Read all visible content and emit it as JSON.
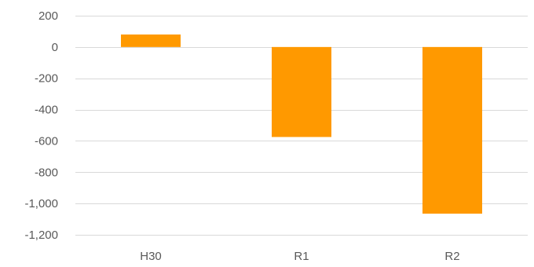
{
  "chart_data": {
    "type": "bar",
    "categories": [
      "H30",
      "R1",
      "R2"
    ],
    "values": [
      80,
      -575,
      -1065
    ],
    "y_ticks": [
      200,
      0,
      -200,
      -400,
      -600,
      -800,
      -1000,
      -1200
    ],
    "y_tick_labels": [
      "200",
      "0",
      "-200",
      "-400",
      "-600",
      "-800",
      "-1,000",
      "-1,200"
    ],
    "ylim": [
      -1200,
      200
    ],
    "grid": true,
    "bar_color": "#FF9900",
    "grid_color": "#D9D9D9",
    "text_color": "#595959"
  }
}
